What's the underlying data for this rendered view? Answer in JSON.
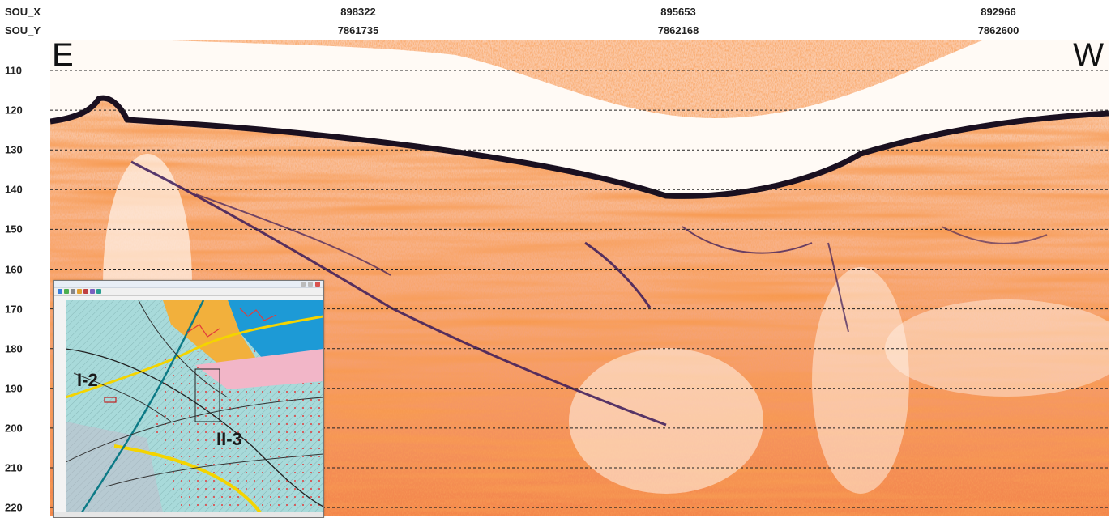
{
  "header": {
    "row_x_label": "SOU_X",
    "row_y_label": "SOU_Y",
    "stations": [
      {
        "x": "898322",
        "y": "7861735"
      },
      {
        "x": "895653",
        "y": "7862168"
      },
      {
        "x": "892966",
        "y": "7862600"
      }
    ]
  },
  "depth_axis": {
    "ticks": [
      "110",
      "120",
      "130",
      "140",
      "150",
      "160",
      "170",
      "180",
      "190",
      "200",
      "210",
      "220"
    ]
  },
  "profile": {
    "left_direction": "E",
    "right_direction": "W"
  },
  "inset_map": {
    "zone_labels": [
      "I-2",
      "II-3"
    ]
  },
  "colors": {
    "seismic_bright": "#f25a1c",
    "seismic_mid": "#f79a63",
    "seismic_pale": "#fde4d2",
    "seabed_dark": "#1a1020",
    "reflector_dark": "#3a1a5a",
    "map_bg": "#a8dada",
    "map_blue": "#1d9ad6",
    "map_orange": "#f2b03c",
    "map_pink": "#f2b6c8",
    "map_yellow": "#f4d400"
  }
}
